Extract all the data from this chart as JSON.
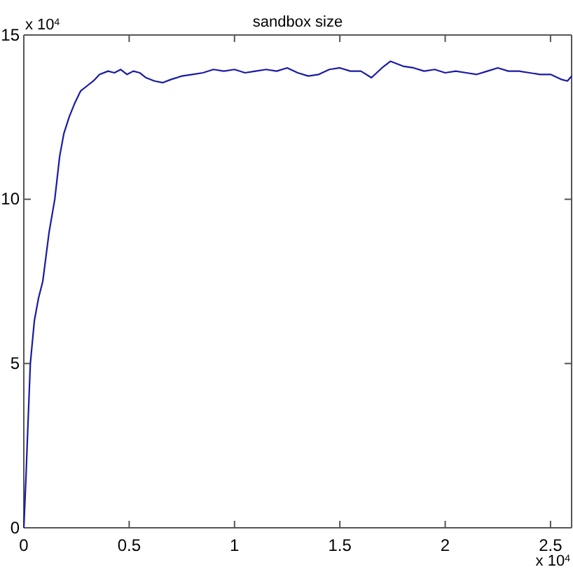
{
  "chart_data": {
    "type": "line",
    "title": "sandbox size",
    "x": [
      0,
      0.01,
      0.02,
      0.031,
      0.05,
      0.07,
      0.09,
      0.12,
      0.147,
      0.17,
      0.19,
      0.215,
      0.24,
      0.27,
      0.3,
      0.33,
      0.36,
      0.4,
      0.43,
      0.46,
      0.49,
      0.52,
      0.55,
      0.58,
      0.62,
      0.66,
      0.7,
      0.75,
      0.8,
      0.85,
      0.9,
      0.95,
      1,
      1.05,
      1.1,
      1.15,
      1.2,
      1.25,
      1.3,
      1.35,
      1.4,
      1.45,
      1.5,
      1.55,
      1.6,
      1.65,
      1.7,
      1.74,
      1.8,
      1.85,
      1.9,
      1.95,
      2,
      2.05,
      2.1,
      2.15,
      2.2,
      2.25,
      2.3,
      2.35,
      2.4,
      2.45,
      2.5,
      2.55,
      2.58,
      2.6
    ],
    "series": [
      {
        "color": "#1a1aa6",
        "values": [
          0,
          1.5,
          3.2,
          5,
          6.3,
          7,
          7.5,
          9,
          10,
          11.3,
          12,
          12.5,
          12.9,
          13.3,
          13.45,
          13.6,
          13.8,
          13.9,
          13.85,
          13.95,
          13.8,
          13.9,
          13.85,
          13.7,
          13.6,
          13.55,
          13.65,
          13.75,
          13.8,
          13.85,
          13.95,
          13.9,
          13.95,
          13.85,
          13.9,
          13.95,
          13.9,
          14,
          13.85,
          13.75,
          13.8,
          13.95,
          14,
          13.9,
          13.9,
          13.7,
          14,
          14.2,
          14.05,
          14,
          13.9,
          13.95,
          13.85,
          13.9,
          13.85,
          13.8,
          13.9,
          14,
          13.9,
          13.9,
          13.85,
          13.8,
          13.8,
          13.65,
          13.6,
          13.75
        ]
      }
    ],
    "xlim": [
      0,
      2.6
    ],
    "xticks": [
      0,
      0.5,
      1,
      1.5,
      2,
      2.5
    ],
    "ylim": [
      0,
      15
    ],
    "yticks": [
      0,
      5,
      10,
      15
    ],
    "annotations": [
      "x 10$^{4}$",
      "x 10$^{4}$"
    ],
    "marker": "none",
    "line_style": "solid"
  }
}
